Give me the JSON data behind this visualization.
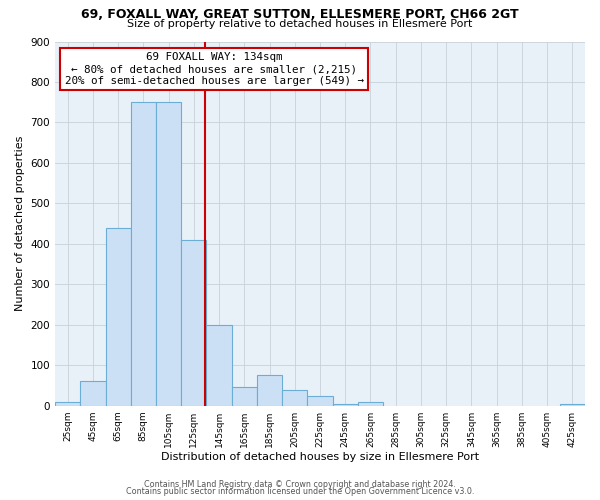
{
  "title1": "69, FOXALL WAY, GREAT SUTTON, ELLESMERE PORT, CH66 2GT",
  "title2": "Size of property relative to detached houses in Ellesmere Port",
  "xlabel": "Distribution of detached houses by size in Ellesmere Port",
  "ylabel": "Number of detached properties",
  "bin_edges": [
    15,
    35,
    55,
    75,
    95,
    115,
    135,
    155,
    175,
    195,
    215,
    235,
    255,
    275,
    295,
    315,
    335,
    355,
    375,
    395,
    415,
    435
  ],
  "bar_heights": [
    10,
    60,
    440,
    750,
    750,
    410,
    200,
    45,
    75,
    40,
    25,
    5,
    10,
    0,
    0,
    0,
    0,
    0,
    0,
    0,
    5
  ],
  "bar_color": "#cce0f5",
  "bar_edgecolor": "#6aaed6",
  "vline_x": 134,
  "vline_color": "#cc0000",
  "property_size": 134,
  "pct_smaller": 80,
  "n_smaller": "2,215",
  "pct_larger_semi": 20,
  "n_larger_semi": 549,
  "ylim": [
    0,
    900
  ],
  "xlim": [
    15,
    435
  ],
  "xtick_positions": [
    25,
    45,
    65,
    85,
    105,
    125,
    145,
    165,
    185,
    205,
    225,
    245,
    265,
    285,
    305,
    325,
    345,
    365,
    385,
    405,
    425
  ],
  "xtick_labels": [
    "25sqm",
    "45sqm",
    "65sqm",
    "85sqm",
    "105sqm",
    "125sqm",
    "145sqm",
    "165sqm",
    "185sqm",
    "205sqm",
    "225sqm",
    "245sqm",
    "265sqm",
    "285sqm",
    "305sqm",
    "325sqm",
    "345sqm",
    "365sqm",
    "385sqm",
    "405sqm",
    "425sqm"
  ],
  "ytick_positions": [
    0,
    100,
    200,
    300,
    400,
    500,
    600,
    700,
    800,
    900
  ],
  "footer1": "Contains HM Land Registry data © Crown copyright and database right 2024.",
  "footer2": "Contains public sector information licensed under the Open Government Licence v3.0.",
  "bg_color": "#ffffff",
  "plot_bg_color": "#e8f0f8",
  "grid_color": "#c8d0d8"
}
